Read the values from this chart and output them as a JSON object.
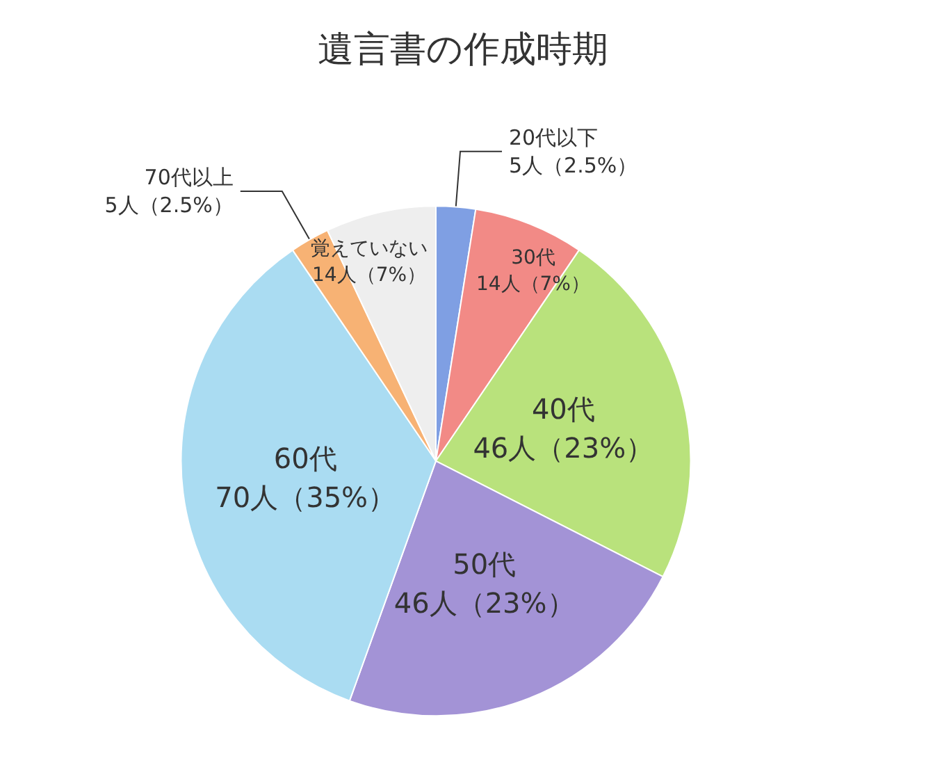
{
  "chart_data": {
    "type": "pie",
    "title": "遺言書の作成時期",
    "categories": [
      "20代以下",
      "30代",
      "40代",
      "50代",
      "60代",
      "70代以上",
      "覚えていない"
    ],
    "values": [
      5,
      14,
      46,
      46,
      70,
      5,
      14
    ],
    "value_labels": [
      "5人（2.5%）",
      "14人（7%）",
      "46人（23%）",
      "46人（23%）",
      "70人（35%）",
      "5人（2.5%）",
      "14人（7%）"
    ],
    "colors": [
      "#7f9fe3",
      "#f28a86",
      "#b9e27c",
      "#a393d6",
      "#aadcf2",
      "#f7b274",
      "#eeeeee"
    ],
    "legend": false
  }
}
